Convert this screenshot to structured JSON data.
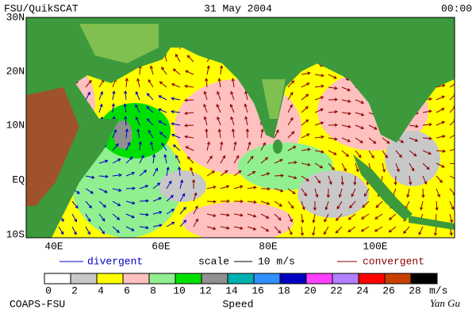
{
  "header": {
    "product": "FSU/QuikSCAT",
    "date": "31 May 2004",
    "time": "00:00"
  },
  "map": {
    "lat_labels": [
      "30N",
      "20N",
      "10N",
      "EQ",
      "10S"
    ],
    "lon_labels": [
      "40E",
      "60E",
      "80E",
      "100E"
    ]
  },
  "legend": {
    "divergent": "divergent",
    "scale": "scale",
    "scale_value": "10 m/s",
    "convergent": "convergent"
  },
  "colorbar": {
    "ticks": [
      0,
      2,
      4,
      6,
      8,
      10,
      12,
      14,
      16,
      18,
      20,
      22,
      24,
      26,
      28
    ],
    "unit": "m/s",
    "title": "Speed",
    "colors": [
      "#ffffff",
      "#c8c8c8",
      "#ffff00",
      "#ffc0c0",
      "#90f090",
      "#00e000",
      "#909090",
      "#00b0b0",
      "#3090ff",
      "#0000c0",
      "#ff40ff",
      "#b080ff",
      "#ff0000",
      "#c84000",
      "#000000"
    ]
  },
  "footer": {
    "org": "COAPS-FSU",
    "author": "Yan Gu"
  }
}
